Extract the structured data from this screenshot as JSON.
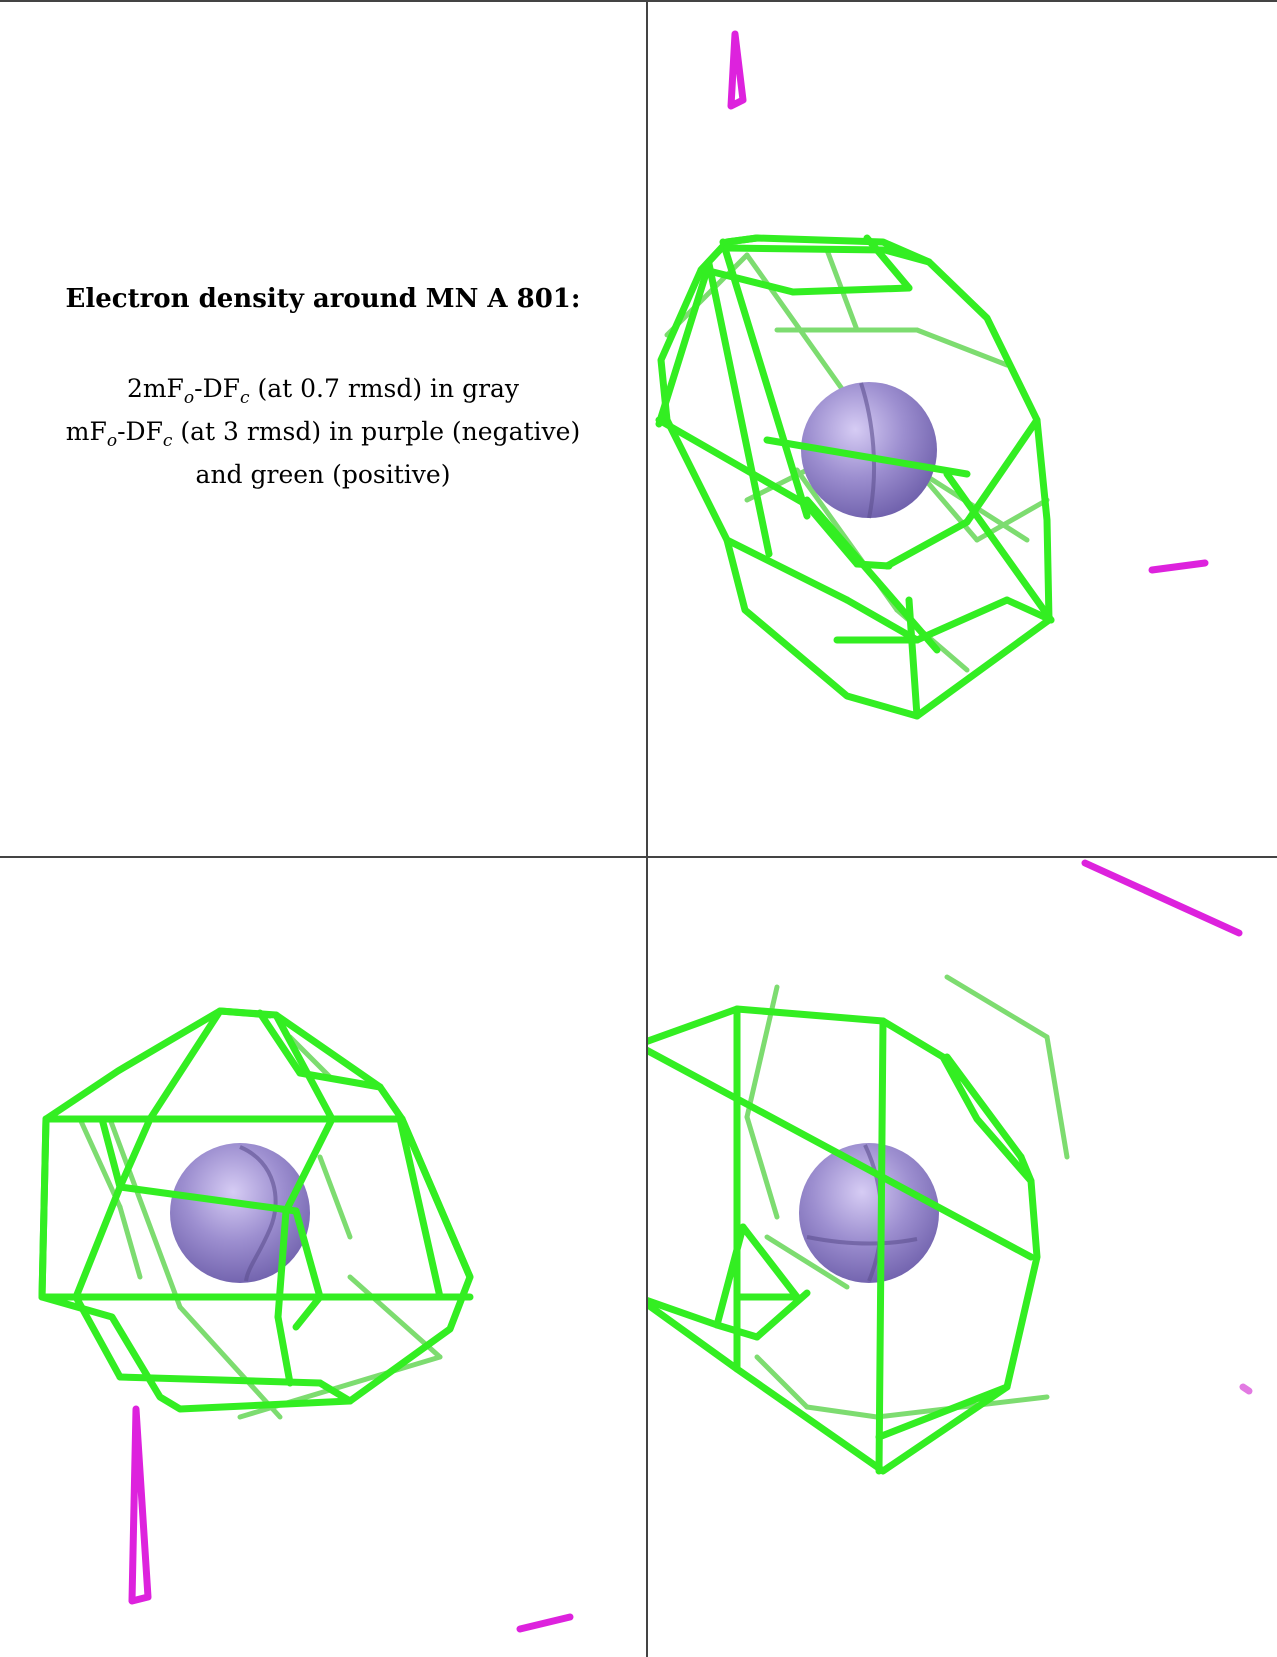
{
  "caption": {
    "title": "Electron density around MN A 801:",
    "line1": {
      "pre": "2mF",
      "sub1": "o",
      "mid": "-DF",
      "sub2": "c",
      "post": " (at 0.7 rmsd) in gray"
    },
    "line2": {
      "pre": "mF",
      "sub1": "o",
      "mid": "-DF",
      "sub2": "c",
      "post": " (at 3 rmsd) in purple (negative)"
    },
    "line3": "and green (positive)"
  },
  "colors": {
    "positive_mesh": "#33ee22",
    "positive_mesh_back": "#7ddc70",
    "negative_mesh": "#dd22dd",
    "atom": "#9d8fd0",
    "atom_dark": "#7b6cb8",
    "border": "#444444"
  }
}
